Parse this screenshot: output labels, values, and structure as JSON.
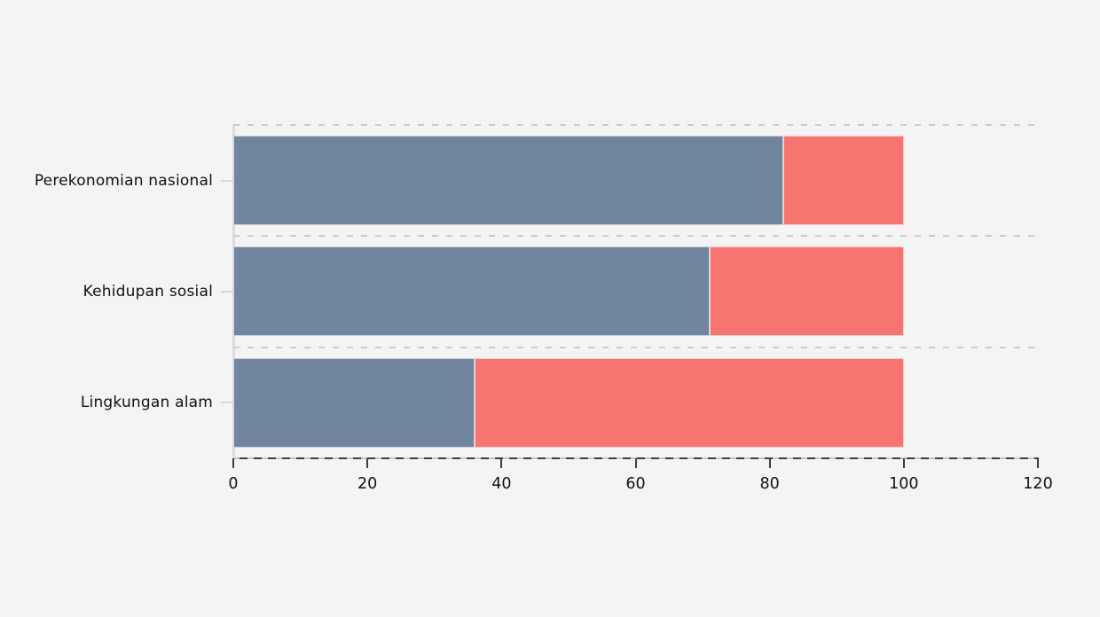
{
  "chart_data": {
    "type": "bar",
    "orientation": "horizontal",
    "stacked": true,
    "title": "",
    "xlabel": "",
    "ylabel": "",
    "categories": [
      "Perekonomian nasional",
      "Kehidupan sosial",
      "Lingkungan alam"
    ],
    "series": [
      {
        "name": "series-1-blue",
        "color": "#70869F",
        "values": [
          82,
          71,
          36
        ]
      },
      {
        "name": "series-2-red",
        "color": "#F87471",
        "values": [
          18,
          29,
          64
        ]
      }
    ],
    "bar_totals": [
      100,
      100,
      100
    ],
    "xlim": [
      0,
      120
    ],
    "x_ticks": [
      0,
      20,
      40,
      60,
      80,
      100,
      120
    ],
    "grid": "horizontal dashed lines between category bands",
    "legend": "none",
    "colors": {
      "background": "#f4f4f5",
      "gridline": "#cccccc",
      "axis": "#3e3e3e",
      "y_axis_line": "#dcdcdf",
      "text": "#111111"
    }
  }
}
